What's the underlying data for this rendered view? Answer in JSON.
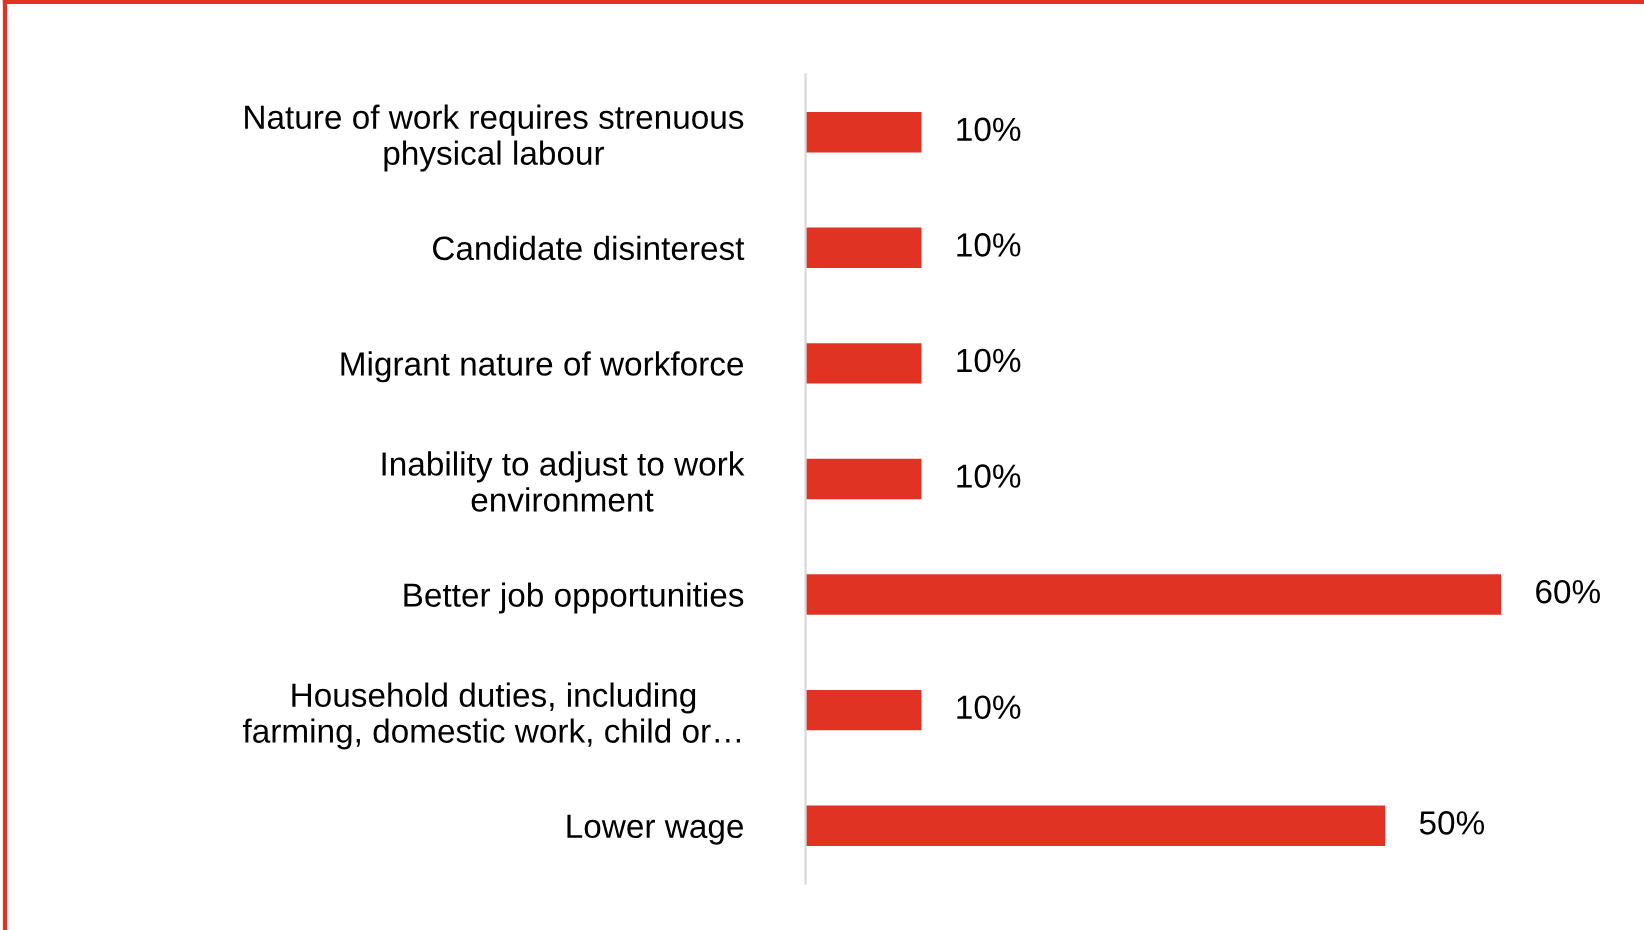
{
  "chart_data": {
    "type": "bar",
    "orientation": "horizontal",
    "categories": [
      "Nature of work requires strenuous\nphysical labour",
      "Candidate disinterest",
      "Migrant nature of workforce",
      "Inability to adjust to work\nenvironment",
      "Better job opportunities",
      "Household duties, including\nfarming, domestic work, child or…",
      "Lower wage"
    ],
    "values": [
      10,
      10,
      10,
      10,
      60,
      10,
      50
    ],
    "value_labels": [
      "10%",
      "10%",
      "10%",
      "10%",
      "60%",
      "10%",
      "50%"
    ],
    "color": "#e03323",
    "tick_labels": "y",
    "grid": false,
    "legend": false
  }
}
